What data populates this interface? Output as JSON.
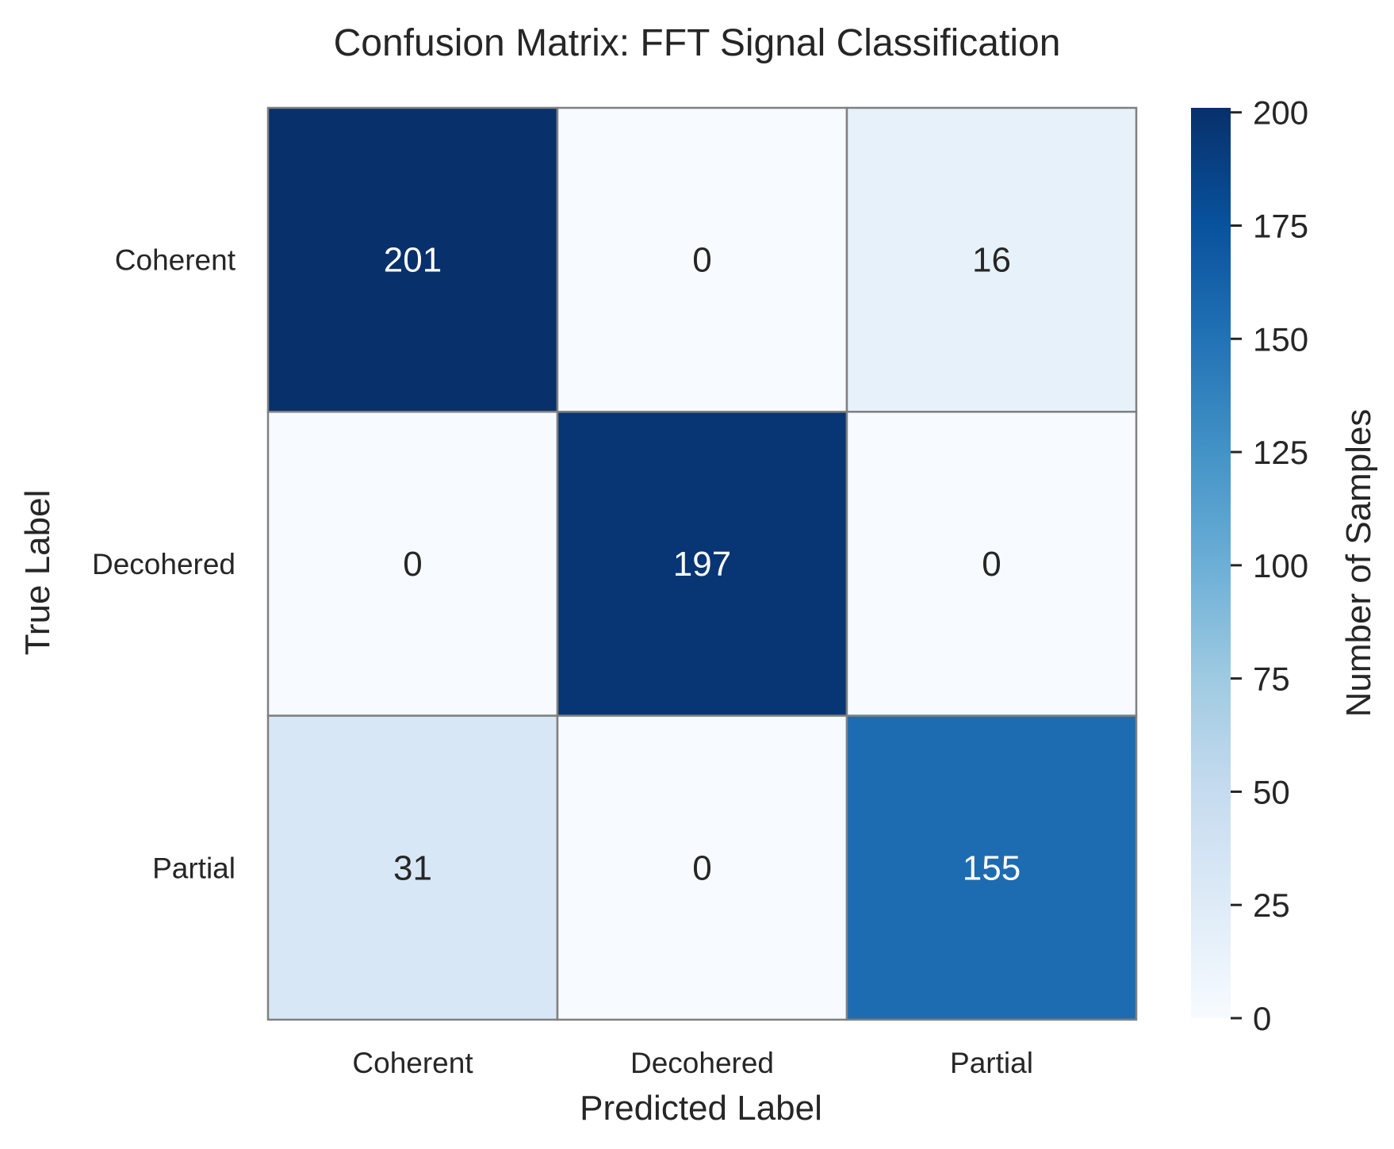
{
  "chart_data": {
    "type": "heatmap",
    "title": "Confusion Matrix: FFT Signal Classification",
    "xlabel": "Predicted Label",
    "ylabel": "True Label",
    "x_categories": [
      "Coherent",
      "Decohered",
      "Partial"
    ],
    "y_categories": [
      "Coherent",
      "Decohered",
      "Partial"
    ],
    "values": [
      [
        201,
        0,
        16
      ],
      [
        0,
        197,
        0
      ],
      [
        31,
        0,
        155
      ]
    ],
    "colorbar": {
      "label": "Number of Samples",
      "range": [
        0,
        201
      ],
      "ticks": [
        0,
        25,
        50,
        75,
        100,
        125,
        150,
        175,
        200
      ],
      "colormap": "Blues"
    },
    "colors": {
      "low": "#f7fbff",
      "high": "#08306b",
      "cell_border": "#808080"
    }
  }
}
